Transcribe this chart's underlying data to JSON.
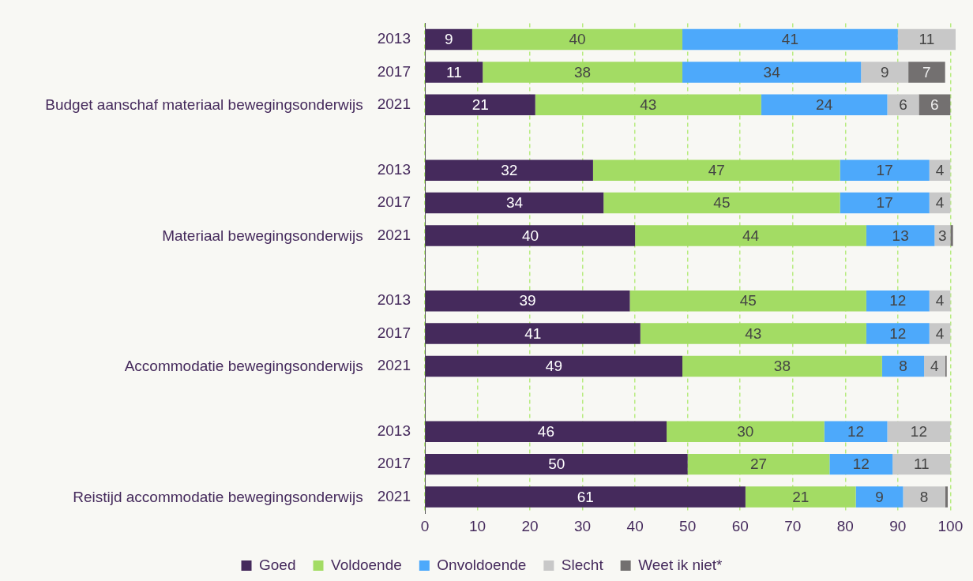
{
  "chart_data": {
    "type": "bar",
    "orientation": "horizontal",
    "stacked": true,
    "categories": [
      "2013",
      "2017",
      "2021",
      null,
      "2013",
      "2017",
      "2021",
      null,
      "2013",
      "2017",
      "2021",
      null,
      "2013",
      "2017",
      "2021"
    ],
    "series": [
      {
        "name": "Goed",
        "color": "#452a5c",
        "values": [
          9,
          11,
          21,
          null,
          32,
          34,
          40,
          null,
          39,
          41,
          49,
          null,
          46,
          50,
          61
        ]
      },
      {
        "name": "Voldoende",
        "color": "#a3dc64",
        "values": [
          40,
          38,
          43,
          null,
          47,
          45,
          44,
          null,
          45,
          43,
          38,
          null,
          30,
          27,
          21
        ]
      },
      {
        "name": "Onvoldoende",
        "color": "#4da9fb",
        "values": [
          41,
          34,
          24,
          null,
          17,
          17,
          13,
          null,
          12,
          12,
          8,
          null,
          12,
          12,
          9
        ]
      },
      {
        "name": "Slecht",
        "color": "#c8c8c8",
        "values": [
          11,
          9,
          6,
          null,
          4,
          4,
          3,
          null,
          4,
          4,
          4,
          null,
          12,
          11,
          8
        ]
      },
      {
        "name": "Weet ik niet*",
        "color": "#737070",
        "values": [
          null,
          7,
          6,
          null,
          null,
          null,
          0.5,
          null,
          null,
          null,
          0.3,
          null,
          null,
          null,
          0.5
        ],
        "value_labels": [
          null,
          "7",
          "6",
          null,
          null,
          null,
          null,
          null,
          null,
          null,
          null,
          null,
          null,
          null,
          null
        ]
      }
    ],
    "annotations": [
      "Budget aanschaf materiaal bewegingsonderwijs",
      "Materiaal bewegingsonderwijs",
      "Accommodatie bewegingsonderwijs",
      "Reistijd accommodatie bewegingsonderwijs"
    ],
    "xlim": [
      0,
      101
    ],
    "xticks": [
      0,
      10,
      20,
      30,
      40,
      50,
      60,
      70,
      80,
      90,
      100
    ],
    "grid": "x",
    "legend": "bottom",
    "data_labels": true
  }
}
